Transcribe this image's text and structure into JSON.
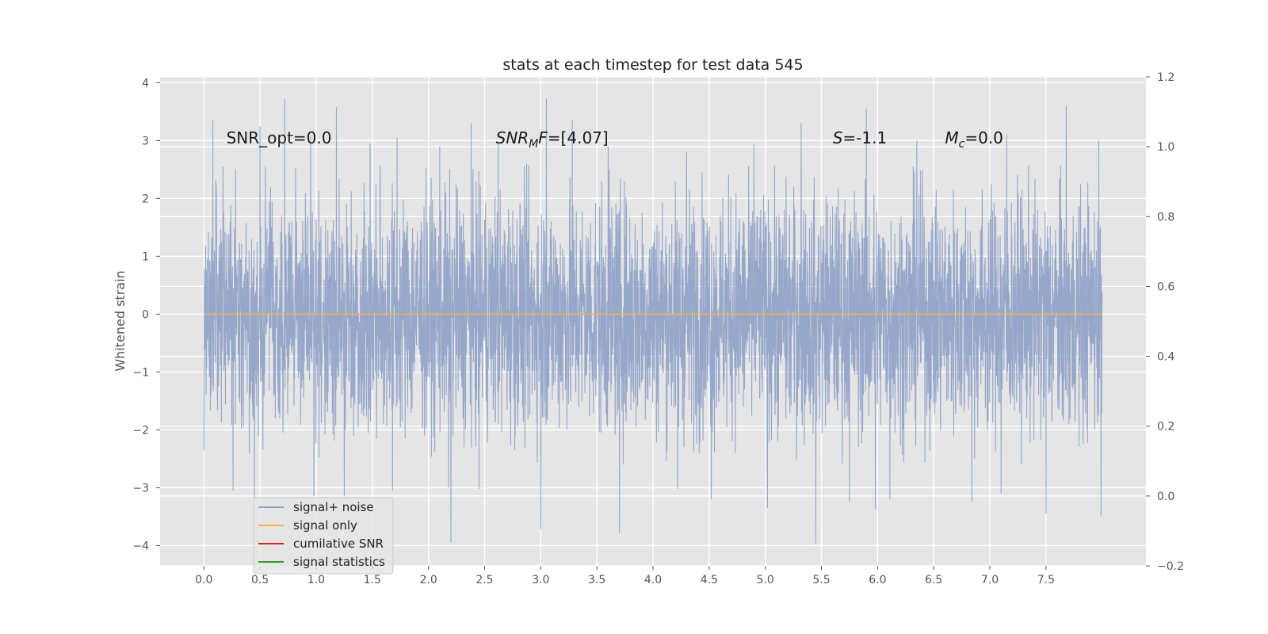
{
  "chart_data": {
    "type": "line",
    "title": "stats at each timestep for test data 545",
    "xlabel": "",
    "ylabel": "Whitened strain",
    "xlim": [
      -0.39,
      8.39
    ],
    "ylim": [
      -4.35,
      4.1
    ],
    "y2lim": [
      -0.2,
      1.2
    ],
    "x_ticks": [
      0.0,
      0.5,
      1.0,
      1.5,
      2.0,
      2.5,
      3.0,
      3.5,
      4.0,
      4.5,
      5.0,
      5.5,
      6.0,
      6.5,
      7.0,
      7.5
    ],
    "x_tick_labels": [
      "0.0",
      "0.5",
      "1.0",
      "1.5",
      "2.0",
      "2.5",
      "3.0",
      "3.5",
      "4.0",
      "4.5",
      "5.0",
      "5.5",
      "6.0",
      "6.5",
      "7.0",
      "7.5"
    ],
    "y_ticks": [
      4,
      3,
      2,
      1,
      0,
      -1,
      -2,
      -3,
      -4
    ],
    "y_tick_labels": [
      "4",
      "3",
      "2",
      "1",
      "0",
      "−1",
      "−2",
      "−3",
      "−4"
    ],
    "y2_ticks": [
      1.2,
      1.0,
      0.8,
      0.6,
      0.4,
      0.2,
      0.0,
      -0.2
    ],
    "y2_tick_labels": [
      "1.2",
      "1.0",
      "0.8",
      "0.6",
      "0.4",
      "0.2",
      "0.0",
      "−0.2"
    ],
    "grid": true,
    "legend_position": "bottom-left",
    "series": [
      {
        "name": "signal+ noise",
        "color": "#8da0c7",
        "kind": "noise",
        "x_range": [
          0.0,
          8.0
        ],
        "typical_envelope": [
          -2.0,
          2.0
        ],
        "peaks": [
          [
            0.08,
            3.35
          ],
          [
            0.17,
            2.55
          ],
          [
            0.5,
            3.25
          ],
          [
            0.72,
            3.72
          ],
          [
            0.95,
            3.08
          ],
          [
            1.18,
            3.58
          ],
          [
            1.48,
            2.95
          ],
          [
            1.72,
            3.05
          ],
          [
            2.1,
            2.9
          ],
          [
            2.38,
            3.3
          ],
          [
            2.62,
            2.95
          ],
          [
            3.05,
            3.72
          ],
          [
            3.28,
            3.35
          ],
          [
            3.6,
            2.9
          ],
          [
            4.3,
            2.8
          ],
          [
            4.9,
            2.95
          ],
          [
            5.32,
            3.3
          ],
          [
            5.9,
            3.55
          ],
          [
            6.35,
            3.0
          ],
          [
            7.15,
            3.1
          ],
          [
            7.68,
            3.6
          ],
          [
            7.97,
            3.0
          ]
        ],
        "troughs": [
          [
            0.26,
            -3.05
          ],
          [
            0.45,
            -3.2
          ],
          [
            0.98,
            -3.15
          ],
          [
            1.25,
            -3.15
          ],
          [
            1.68,
            -3.05
          ],
          [
            2.18,
            -3.0
          ],
          [
            2.2,
            -3.95
          ],
          [
            2.45,
            -3.02
          ],
          [
            3.0,
            -3.72
          ],
          [
            3.7,
            -3.78
          ],
          [
            4.22,
            -3.02
          ],
          [
            4.52,
            -3.2
          ],
          [
            5.02,
            -3.35
          ],
          [
            5.45,
            -3.98
          ],
          [
            5.75,
            -3.25
          ],
          [
            5.98,
            -3.38
          ],
          [
            6.11,
            -3.2
          ],
          [
            6.84,
            -3.25
          ],
          [
            7.1,
            -3.1
          ],
          [
            7.5,
            -3.45
          ],
          [
            7.99,
            -3.5
          ]
        ]
      },
      {
        "name": "signal only",
        "color": "#f0b54a",
        "kind": "line",
        "x": [
          0.0,
          8.0
        ],
        "y": [
          0.0,
          0.0
        ]
      },
      {
        "name": "cumilative SNR",
        "color": "#e02020",
        "kind": "legend-only"
      },
      {
        "name": "signal statistics",
        "color": "#2ca02c",
        "kind": "legend-only"
      }
    ],
    "annotations": [
      {
        "name": "snr-opt",
        "text": "SNR_opt=0.0",
        "x": 0.2,
        "y": 2.95,
        "style": "plain"
      },
      {
        "name": "snr-mf",
        "main": "SNR",
        "sub": "M",
        "tail": "F=[4.07]",
        "x": 2.6,
        "y": 2.95,
        "style": "italic-sub"
      },
      {
        "name": "s-value",
        "main": "S",
        "sub": "",
        "tail": "=-1.1",
        "x": 5.6,
        "y": 2.95,
        "style": "italic-sub"
      },
      {
        "name": "mc-value",
        "main": "M",
        "sub": "c",
        "tail": "=0.0",
        "x": 6.6,
        "y": 2.95,
        "style": "italic-sub"
      }
    ]
  }
}
